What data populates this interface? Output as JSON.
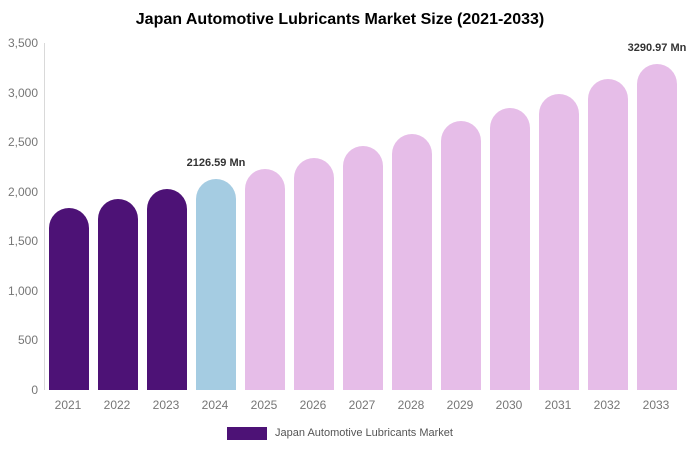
{
  "title": "Japan Automotive Lubricants Market Size (2021-2033)",
  "chart_data": {
    "type": "bar",
    "title": "Japan Automotive Lubricants Market Size (2021-2033)",
    "unit": "Mn",
    "categories": [
      "2021",
      "2022",
      "2023",
      "2024",
      "2025",
      "2026",
      "2027",
      "2028",
      "2029",
      "2030",
      "2031",
      "2032",
      "2033"
    ],
    "values": [
      1840,
      1930,
      2025,
      2126.59,
      2230,
      2345,
      2460,
      2580,
      2710,
      2845,
      2990,
      3135,
      3290.97
    ],
    "bar_colors": [
      "#4D1276",
      "#4D1276",
      "#4D1276",
      "#A5CCE2",
      "#E6BDE8",
      "#E6BDE8",
      "#E6BDE8",
      "#E6BDE8",
      "#E6BDE8",
      "#E6BDE8",
      "#E6BDE8",
      "#E6BDE8",
      "#E6BDE8"
    ],
    "ylim": [
      0,
      3500
    ],
    "yticks": [
      {
        "value": 0,
        "label": "0"
      },
      {
        "value": 500,
        "label": "500"
      },
      {
        "value": 1000,
        "label": "1,000"
      },
      {
        "value": 1500,
        "label": "1,500"
      },
      {
        "value": 2000,
        "label": "2,000"
      },
      {
        "value": 2500,
        "label": "2,500"
      },
      {
        "value": 3000,
        "label": "3,000"
      },
      {
        "value": 3500,
        "label": "3,500"
      }
    ],
    "grid": false,
    "legend_position": "bottom",
    "legend_label": "Japan Automotive Lubricants Market",
    "annotations": [
      {
        "category": "2024",
        "text": "2126.59 Mn"
      },
      {
        "category": "2033",
        "text": "3290.97 Mn"
      }
    ]
  },
  "colors": {
    "historical_bar": "#4D1276",
    "base_year_bar": "#A5CCE2",
    "forecast_bar": "#E6BDE8",
    "legend_swatch": "#4D1276",
    "axis_line": "#d9d9d9",
    "tick_text": "#767676",
    "annotation_text": "#333333",
    "title_text": "#000000",
    "legend_text": "#555555"
  }
}
